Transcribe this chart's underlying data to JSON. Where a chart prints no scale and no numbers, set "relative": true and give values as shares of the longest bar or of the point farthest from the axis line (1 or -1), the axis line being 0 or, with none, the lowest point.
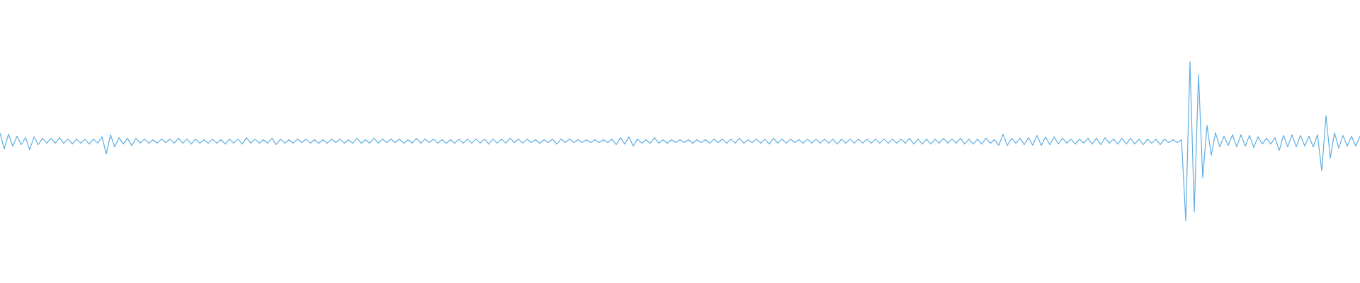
{
  "chart_data": {
    "type": "line",
    "relative": true,
    "tick_labels": false,
    "color": "#5dade2",
    "categories": [
      null,
      null,
      null,
      null,
      null,
      null,
      null,
      null,
      null,
      null,
      null,
      null,
      null,
      null,
      null,
      null,
      null,
      null,
      null,
      null,
      null,
      null,
      null,
      null,
      null,
      null,
      null,
      null,
      null,
      null,
      null,
      null,
      null,
      null,
      null,
      null,
      null,
      null,
      null,
      null,
      null,
      null,
      null,
      null,
      null,
      null,
      null,
      null,
      null,
      null,
      null,
      null,
      null,
      null,
      null,
      null,
      null,
      null,
      null,
      null,
      null,
      null,
      null,
      null,
      null,
      null,
      null,
      null,
      null,
      null,
      null,
      null,
      null,
      null,
      null,
      null,
      null,
      null,
      null,
      null,
      null,
      null,
      null,
      null,
      null,
      null,
      null,
      null,
      null,
      null,
      null,
      null,
      null,
      null,
      null,
      null,
      null,
      null,
      null,
      null,
      null,
      null,
      null,
      null,
      null,
      null,
      null,
      null,
      null,
      null,
      null,
      null,
      null,
      null,
      null,
      null,
      null,
      null,
      null,
      null,
      null,
      null,
      null,
      null,
      null,
      null,
      null,
      null,
      null,
      null,
      null,
      null,
      null,
      null,
      null,
      null,
      null,
      null,
      null,
      null,
      null,
      null,
      null,
      null,
      null,
      null,
      null,
      null,
      null,
      null,
      null,
      null,
      null,
      null,
      null,
      null,
      null,
      null,
      null,
      null,
      null,
      null,
      null,
      null,
      null,
      null,
      null,
      null,
      null,
      null,
      null,
      null,
      null,
      null,
      null,
      null,
      null,
      null,
      null,
      null,
      null,
      null,
      null,
      null,
      null,
      null,
      null,
      null,
      null,
      null,
      null,
      null,
      null,
      null,
      null,
      null,
      null,
      null,
      null,
      null,
      null,
      null,
      null,
      null,
      null,
      null,
      null,
      null,
      null,
      null,
      null,
      null,
      null,
      null,
      null,
      null,
      null,
      null,
      null,
      null,
      null,
      null,
      null,
      null,
      null,
      null,
      null,
      null,
      null,
      null,
      null,
      null,
      null,
      null,
      null,
      null,
      null,
      null,
      null,
      null,
      null,
      null,
      null,
      null,
      null,
      null,
      null,
      null,
      null,
      null,
      null,
      null,
      null,
      null,
      null,
      null,
      null,
      null,
      null,
      null,
      null,
      null,
      null,
      null,
      null,
      null,
      null,
      null,
      null,
      null,
      null,
      null,
      null,
      null,
      null,
      null,
      null,
      null,
      null,
      null,
      null,
      null,
      null,
      null,
      null,
      null,
      null,
      null,
      null,
      null,
      null,
      null,
      null,
      null,
      null,
      null,
      null,
      null,
      null,
      null,
      null,
      null,
      null,
      null,
      null,
      null,
      null,
      null,
      null,
      null,
      null,
      null,
      null,
      null,
      null,
      null,
      null,
      null,
      null,
      null,
      null
    ],
    "values": [
      0.549,
      0.451,
      0.544,
      0.469,
      0.531,
      0.478,
      0.522,
      0.447,
      0.527,
      0.478,
      0.518,
      0.487,
      0.518,
      0.487,
      0.522,
      0.487,
      0.513,
      0.482,
      0.513,
      0.487,
      0.513,
      0.482,
      0.513,
      0.487,
      0.527,
      0.42,
      0.54,
      0.464,
      0.522,
      0.482,
      0.518,
      0.473,
      0.518,
      0.487,
      0.513,
      0.487,
      0.509,
      0.487,
      0.513,
      0.491,
      0.513,
      0.487,
      0.518,
      0.487,
      0.513,
      0.482,
      0.513,
      0.487,
      0.509,
      0.487,
      0.513,
      0.487,
      0.509,
      0.482,
      0.513,
      0.487,
      0.513,
      0.482,
      0.522,
      0.487,
      0.513,
      0.487,
      0.509,
      0.487,
      0.518,
      0.478,
      0.513,
      0.487,
      0.509,
      0.487,
      0.513,
      0.491,
      0.513,
      0.487,
      0.509,
      0.487,
      0.509,
      0.487,
      0.513,
      0.491,
      0.513,
      0.487,
      0.509,
      0.487,
      0.518,
      0.487,
      0.509,
      0.487,
      0.518,
      0.487,
      0.513,
      0.491,
      0.513,
      0.491,
      0.513,
      0.487,
      0.509,
      0.487,
      0.518,
      0.487,
      0.513,
      0.491,
      0.513,
      0.487,
      0.509,
      0.487,
      0.509,
      0.487,
      0.513,
      0.487,
      0.513,
      0.487,
      0.513,
      0.487,
      0.513,
      0.482,
      0.513,
      0.487,
      0.513,
      0.487,
      0.518,
      0.491,
      0.513,
      0.487,
      0.513,
      0.491,
      0.509,
      0.487,
      0.509,
      0.491,
      0.513,
      0.482,
      0.513,
      0.491,
      0.513,
      0.491,
      0.509,
      0.491,
      0.509,
      0.491,
      0.509,
      0.491,
      0.509,
      0.491,
      0.513,
      0.478,
      0.522,
      0.482,
      0.527,
      0.469,
      0.513,
      0.487,
      0.509,
      0.487,
      0.522,
      0.487,
      0.509,
      0.487,
      0.509,
      0.491,
      0.509,
      0.491,
      0.509,
      0.487,
      0.509,
      0.491,
      0.509,
      0.487,
      0.513,
      0.491,
      0.513,
      0.487,
      0.513,
      0.487,
      0.518,
      0.487,
      0.509,
      0.491,
      0.513,
      0.487,
      0.513,
      0.482,
      0.518,
      0.487,
      0.513,
      0.487,
      0.513,
      0.491,
      0.509,
      0.487,
      0.513,
      0.487,
      0.513,
      0.487,
      0.513,
      0.487,
      0.513,
      0.482,
      0.513,
      0.487,
      0.513,
      0.487,
      0.513,
      0.487,
      0.513,
      0.487,
      0.513,
      0.487,
      0.513,
      0.487,
      0.513,
      0.487,
      0.513,
      0.487,
      0.518,
      0.482,
      0.513,
      0.482,
      0.513,
      0.482,
      0.513,
      0.487,
      0.518,
      0.487,
      0.513,
      0.487,
      0.518,
      0.482,
      0.513,
      0.482,
      0.513,
      0.482,
      0.518,
      0.487,
      0.509,
      0.473,
      0.544,
      0.473,
      0.518,
      0.487,
      0.518,
      0.478,
      0.522,
      0.473,
      0.536,
      0.473,
      0.527,
      0.478,
      0.527,
      0.482,
      0.518,
      0.487,
      0.513,
      0.482,
      0.513,
      0.487,
      0.518,
      0.482,
      0.518,
      0.478,
      0.522,
      0.487,
      0.513,
      0.482,
      0.518,
      0.482,
      0.518,
      0.482,
      0.513,
      0.478,
      0.513,
      0.487,
      0.513,
      0.478,
      0.513,
      0.491,
      0.509,
      0.491,
      0.509,
      0,
      1,
      0.056,
      0.918,
      0.269,
      0.598,
      0.411,
      0.553,
      0.464,
      0.531,
      0.473,
      0.54,
      0.464,
      0.54,
      0.469,
      0.536,
      0.46,
      0.527,
      0.482,
      0.518,
      0.482,
      0.522,
      0.442,
      0.536,
      0.464,
      0.54,
      0.464,
      0.536,
      0.469,
      0.531,
      0.464,
      0.54,
      0.313,
      0.66,
      0.393,
      0.553,
      0.456,
      0.536,
      0.469,
      0.531,
      0.469,
      0.531
    ]
  }
}
